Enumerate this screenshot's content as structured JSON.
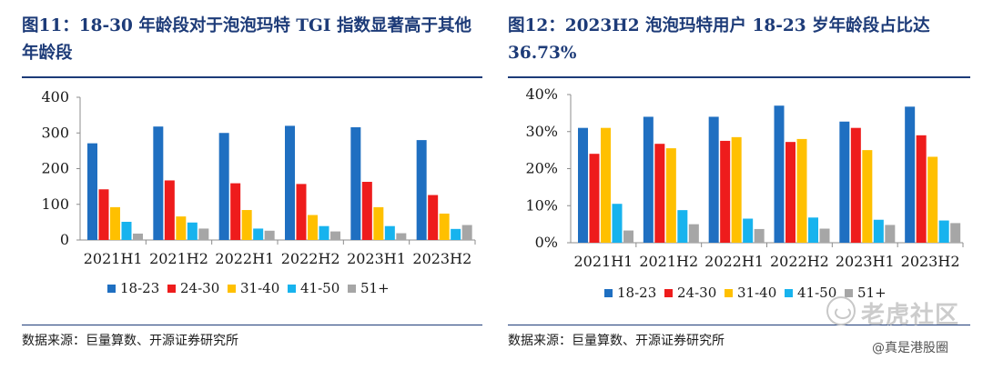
{
  "charts": [
    {
      "title": "图11：18-30 年龄段对于泡泡玛特 TGI 指数显著高于其他年龄段",
      "source": "数据来源：巨量算数、开源证券研究所"
    },
    {
      "title": "图12：2023H2  泡泡玛特用户  18-23  岁年龄段占比达 36.73%",
      "source": "数据来源：巨量算数、开源证券研究所"
    }
  ],
  "chart_data": [
    {
      "type": "bar",
      "title": "图11：18-30 年龄段对于泡泡玛特 TGI 指数显著高于其他年龄段",
      "categories": [
        "2021H1",
        "2021H2",
        "2022H1",
        "2022H2",
        "2023H1",
        "2023H2"
      ],
      "series": [
        {
          "name": "18-23",
          "color": "#1f6fc1",
          "values": [
            271,
            318,
            300,
            320,
            316,
            280
          ]
        },
        {
          "name": "24-30",
          "color": "#ee1c1c",
          "values": [
            142,
            167,
            159,
            157,
            163,
            126
          ]
        },
        {
          "name": "31-40",
          "color": "#ffc000",
          "values": [
            92,
            66,
            84,
            70,
            92,
            74
          ]
        },
        {
          "name": "41-50",
          "color": "#17b3ee",
          "values": [
            51,
            49,
            32,
            39,
            39,
            31
          ]
        },
        {
          "name": "51+",
          "color": "#a6a6a6",
          "values": [
            18,
            32,
            26,
            24,
            19,
            42
          ]
        }
      ],
      "yticks": [
        "0",
        "100",
        "200",
        "300",
        "400"
      ],
      "ylim": [
        0,
        400
      ],
      "grid": false,
      "legend": "bottom"
    },
    {
      "type": "bar",
      "title": "图12：2023H2 泡泡玛特用户 18-23 岁年龄段占比达 36.73%",
      "categories": [
        "2021H1",
        "2021H2",
        "2022H1",
        "2022H2",
        "2023H1",
        "2023H2"
      ],
      "series": [
        {
          "name": "18-23",
          "color": "#1f6fc1",
          "values": [
            31.0,
            34.0,
            34.0,
            37.0,
            32.7,
            36.73
          ]
        },
        {
          "name": "24-30",
          "color": "#ee1c1c",
          "values": [
            24.0,
            26.7,
            27.5,
            27.2,
            31.0,
            29.0
          ]
        },
        {
          "name": "31-40",
          "color": "#ffc000",
          "values": [
            31.0,
            25.5,
            28.5,
            28.0,
            25.0,
            23.2
          ]
        },
        {
          "name": "41-50",
          "color": "#17b3ee",
          "values": [
            10.5,
            8.8,
            6.5,
            6.8,
            6.2,
            6.0
          ]
        },
        {
          "name": "51+",
          "color": "#a6a6a6",
          "values": [
            3.3,
            5.0,
            3.7,
            3.8,
            4.8,
            5.3
          ]
        }
      ],
      "yticks": [
        "0%",
        "10%",
        "20%",
        "30%",
        "40%"
      ],
      "ylim": [
        0,
        40
      ],
      "grid": false,
      "legend": "bottom"
    }
  ],
  "watermark": {
    "brand": "老虎社区",
    "handle": "@真是港股圈",
    "logo_icon": "tiger-logo-icon"
  }
}
